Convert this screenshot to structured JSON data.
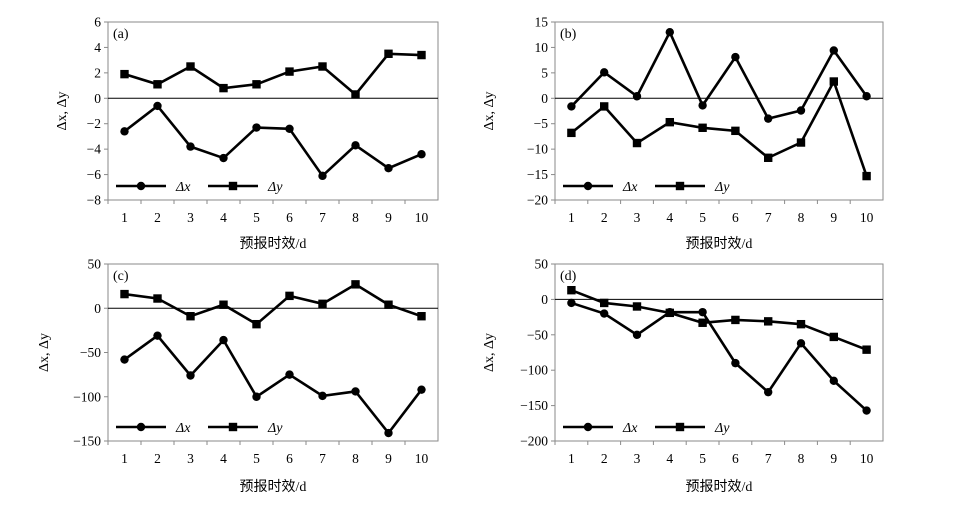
{
  "chart_data": [
    {
      "type": "line",
      "panel_label": "(a)",
      "x": [
        1,
        2,
        3,
        4,
        5,
        6,
        7,
        8,
        9,
        10
      ],
      "xlabel": "预报时效/d",
      "ylabel": "Δx, Δy",
      "ylim": [
        -8,
        6
      ],
      "yticks": [
        -8,
        -6,
        -4,
        -2,
        0,
        2,
        4,
        6
      ],
      "ytick_labels": [
        "−8",
        "−6",
        "−4",
        "−2",
        "0",
        "2",
        "4",
        "6"
      ],
      "series": [
        {
          "name": "Δx",
          "marker": "circle",
          "values": [
            -2.6,
            -0.6,
            -3.8,
            -4.7,
            -2.3,
            -2.4,
            -6.1,
            -3.7,
            -5.5,
            -4.4
          ]
        },
        {
          "name": "Δy",
          "marker": "square",
          "values": [
            1.9,
            1.1,
            2.5,
            0.8,
            1.1,
            2.1,
            2.5,
            0.3,
            3.5,
            3.4
          ]
        }
      ],
      "legend_position": "lower-left"
    },
    {
      "type": "line",
      "panel_label": "(b)",
      "x": [
        1,
        2,
        3,
        4,
        5,
        6,
        7,
        8,
        9,
        10
      ],
      "xlabel": "预报时效/d",
      "ylabel": "Δx, Δy",
      "ylim": [
        -20,
        15
      ],
      "yticks": [
        -20,
        -15,
        -10,
        -5,
        0,
        5,
        10,
        15
      ],
      "ytick_labels": [
        "−20",
        "−15",
        "−10",
        "−5",
        "0",
        "5",
        "10",
        "15"
      ],
      "series": [
        {
          "name": "Δx",
          "marker": "circle",
          "values": [
            -1.6,
            5.1,
            0.4,
            13.0,
            -1.4,
            8.1,
            -4.0,
            -2.4,
            9.4,
            0.4
          ]
        },
        {
          "name": "Δy",
          "marker": "square",
          "values": [
            -6.8,
            -1.6,
            -8.8,
            -4.7,
            -5.8,
            -6.4,
            -11.7,
            -8.7,
            3.3,
            -15.3
          ]
        }
      ],
      "legend_position": "lower-left"
    },
    {
      "type": "line",
      "panel_label": "(c)",
      "x": [
        1,
        2,
        3,
        4,
        5,
        6,
        7,
        8,
        9,
        10
      ],
      "xlabel": "预报时效/d",
      "ylabel": "Δx, Δy",
      "ylim": [
        -150,
        50
      ],
      "yticks": [
        -150,
        -100,
        -50,
        0,
        50
      ],
      "ytick_labels": [
        "−150",
        "−100",
        "−50",
        "0",
        "50"
      ],
      "series": [
        {
          "name": "Δx",
          "marker": "circle",
          "values": [
            -58,
            -31,
            -76,
            -36,
            -100,
            -75,
            -99,
            -94,
            -141,
            -92
          ]
        },
        {
          "name": "Δy",
          "marker": "square",
          "values": [
            16,
            11,
            -9,
            4,
            -18,
            14,
            5,
            27,
            4,
            -9
          ]
        }
      ],
      "legend_position": "lower-left"
    },
    {
      "type": "line",
      "panel_label": "(d)",
      "x": [
        1,
        2,
        3,
        4,
        5,
        6,
        7,
        8,
        9,
        10
      ],
      "xlabel": "预报时效/d",
      "ylabel": "Δx, Δy",
      "ylim": [
        -200,
        50
      ],
      "yticks": [
        -200,
        -150,
        -100,
        -50,
        0,
        50
      ],
      "ytick_labels": [
        "−200",
        "−150",
        "−100",
        "−50",
        "0",
        "50"
      ],
      "series": [
        {
          "name": "Δx",
          "marker": "circle",
          "values": [
            -5,
            -20,
            -50,
            -18,
            -18,
            -90,
            -131,
            -62,
            -115,
            -157
          ]
        },
        {
          "name": "Δy",
          "marker": "square",
          "values": [
            13,
            -5,
            -10,
            -19,
            -33,
            -29,
            -31,
            -35,
            -53,
            -71
          ]
        }
      ],
      "legend_position": "lower-left"
    }
  ]
}
